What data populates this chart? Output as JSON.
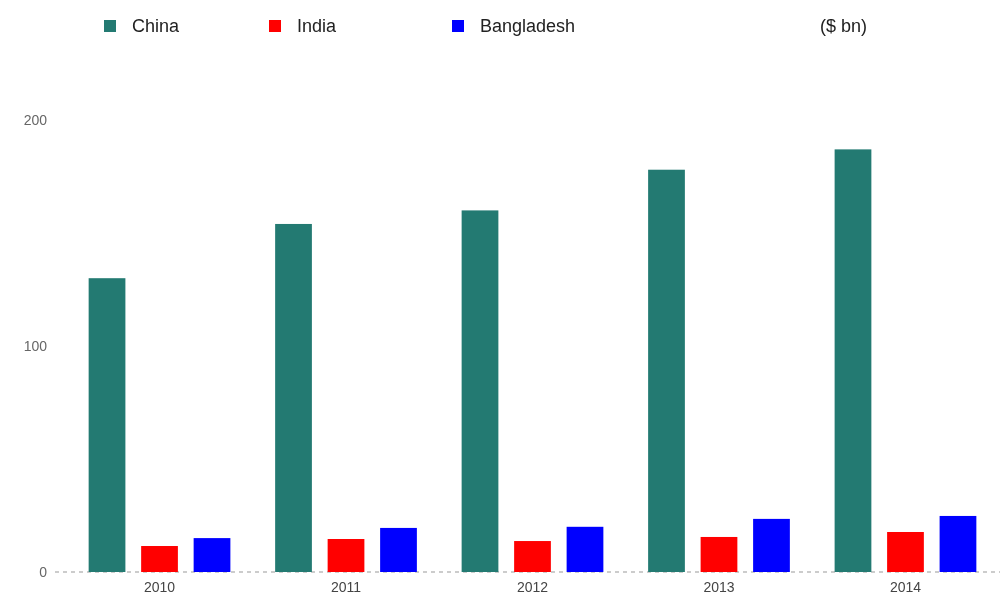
{
  "chart_data": {
    "type": "bar",
    "categories": [
      "2010",
      "2011",
      "2012",
      "2013",
      "2014"
    ],
    "series": [
      {
        "name": "China",
        "color": "#237a72",
        "values": [
          130,
          154,
          160,
          178,
          187
        ]
      },
      {
        "name": "India",
        "color": "#ff0000",
        "values": [
          11.5,
          14.6,
          13.7,
          15.5,
          17.7
        ]
      },
      {
        "name": "Bangladesh",
        "color": "#0000ff",
        "values": [
          15,
          19.5,
          20,
          23.5,
          24.8
        ]
      }
    ],
    "ylim": [
      0,
      200
    ],
    "yticks": [
      0,
      100,
      200
    ],
    "grid": false,
    "legend": "top",
    "annotations": [
      "($ bn)"
    ]
  }
}
